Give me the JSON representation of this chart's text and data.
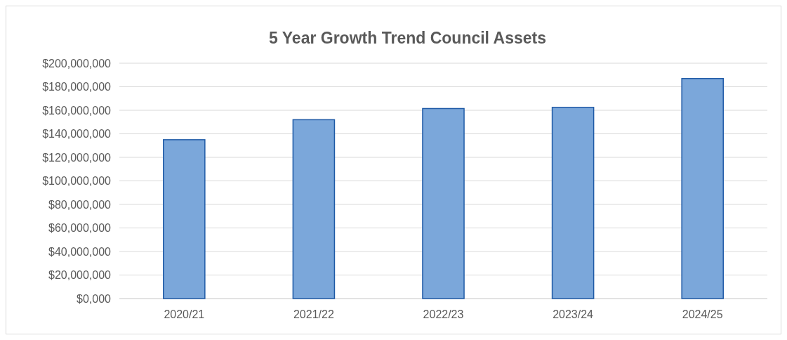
{
  "chart_data": {
    "type": "bar",
    "title": "5 Year Growth Trend Council Assets",
    "categories": [
      "2020/21",
      "2021/22",
      "2022/23",
      "2023/24",
      "2024/25"
    ],
    "values": [
      135000000,
      152000000,
      161500000,
      162500000,
      187000000
    ],
    "color": "#7ba7da",
    "ylim": [
      0,
      200000000
    ],
    "yticks": [
      {
        "value": 0,
        "label": "$0,000"
      },
      {
        "value": 20000000,
        "label": "$20,000,000"
      },
      {
        "value": 40000000,
        "label": "$40,000,000"
      },
      {
        "value": 60000000,
        "label": "$60,000,000"
      },
      {
        "value": 80000000,
        "label": "$80,000,000"
      },
      {
        "value": 100000000,
        "label": "$100,000,000"
      },
      {
        "value": 120000000,
        "label": "$120,000,000"
      },
      {
        "value": 140000000,
        "label": "$140,000,000"
      },
      {
        "value": 160000000,
        "label": "$160,000,000"
      },
      {
        "value": 180000000,
        "label": "$180,000,000"
      },
      {
        "value": 200000000,
        "label": "$200,000,000"
      }
    ],
    "grid": "y"
  }
}
